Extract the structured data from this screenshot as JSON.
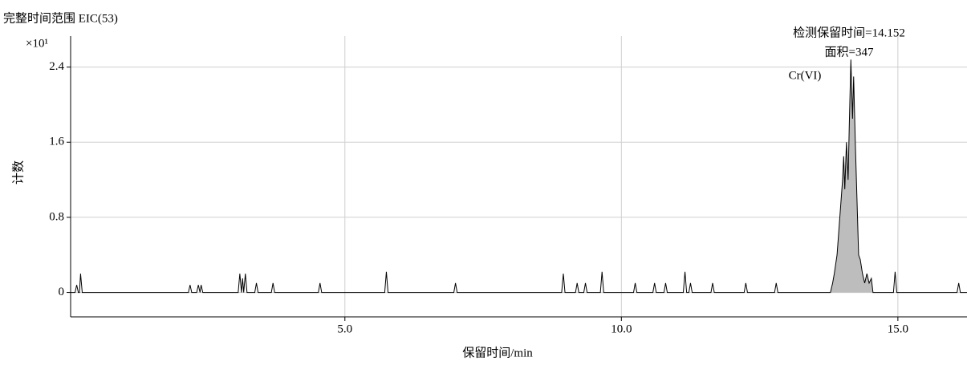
{
  "chart_data": {
    "type": "line",
    "title": "完整时间范围 EIC(53)",
    "y_multiplier": "×10¹",
    "x_label": "保留时间/min",
    "y_label": "计数",
    "annotations": [
      "检测保留时间=14.152",
      "面积=347",
      "Cr(VI)"
    ],
    "xlim": [
      0.04,
      16.25
    ],
    "ylim": [
      -0.26,
      2.73
    ],
    "xticks": [
      {
        "value": 5,
        "label": "5.0"
      },
      {
        "value": 10,
        "label": "10.0"
      },
      {
        "value": 15,
        "label": "15.0"
      }
    ],
    "yticks": [
      0,
      0.8,
      1.6,
      2.4
    ],
    "grid": true,
    "shaded_x": [
      13.78,
      14.55
    ],
    "shade_color": "#bdbdbd",
    "series": [
      {
        "color": "#000000",
        "x": [
          0.04,
          0.12,
          0.15,
          0.18,
          0.2,
          0.22,
          0.25,
          2.17,
          2.2,
          2.23,
          2.32,
          2.35,
          2.38,
          2.4,
          2.43,
          3.07,
          3.1,
          3.13,
          3.15,
          3.17,
          3.2,
          3.23,
          3.37,
          3.4,
          3.43,
          3.67,
          3.7,
          3.73,
          4.52,
          4.55,
          4.58,
          5.72,
          5.75,
          5.78,
          6.97,
          7.0,
          7.03,
          8.92,
          8.95,
          8.98,
          9.17,
          9.2,
          9.23,
          9.32,
          9.35,
          9.38,
          9.62,
          9.65,
          9.68,
          10.22,
          10.25,
          10.28,
          10.57,
          10.6,
          10.63,
          10.77,
          10.8,
          10.83,
          11.12,
          11.15,
          11.18,
          11.22,
          11.25,
          11.28,
          11.62,
          11.65,
          11.68,
          12.22,
          12.25,
          12.28,
          12.77,
          12.8,
          12.83,
          13.78,
          13.82,
          13.85,
          13.9,
          13.95,
          14.0,
          14.02,
          14.04,
          14.07,
          14.1,
          14.12,
          14.15,
          14.18,
          14.2,
          14.23,
          14.26,
          14.29,
          14.32,
          14.36,
          14.4,
          14.44,
          14.48,
          14.52,
          14.55,
          14.92,
          14.95,
          14.98,
          16.07,
          16.1,
          16.13,
          16.25
        ],
        "values": [
          0,
          0,
          0.08,
          0,
          0,
          0.2,
          0,
          0,
          0.08,
          0,
          0,
          0.08,
          0,
          0.08,
          0,
          0,
          0.2,
          0,
          0.15,
          0,
          0.2,
          0,
          0,
          0.1,
          0,
          0,
          0.1,
          0,
          0,
          0.1,
          0,
          0,
          0.22,
          0,
          0,
          0.1,
          0,
          0,
          0.2,
          0,
          0,
          0.1,
          0,
          0,
          0.1,
          0,
          0,
          0.22,
          0,
          0,
          0.1,
          0,
          0,
          0.1,
          0,
          0,
          0.1,
          0,
          0,
          0.22,
          0,
          0,
          0.1,
          0,
          0,
          0.1,
          0,
          0,
          0.1,
          0,
          0,
          0.1,
          0,
          0,
          0.1,
          0.2,
          0.4,
          0.8,
          1.2,
          1.45,
          1.1,
          1.6,
          1.2,
          1.75,
          2.48,
          1.85,
          2.3,
          1.6,
          1.0,
          0.4,
          0.35,
          0.2,
          0.1,
          0.2,
          0.1,
          0.15,
          0,
          0,
          0.22,
          0,
          0,
          0.1,
          0,
          0
        ]
      }
    ]
  }
}
